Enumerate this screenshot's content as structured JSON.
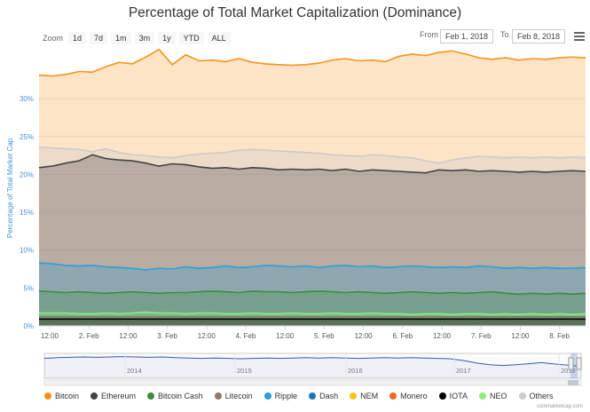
{
  "chart_data": {
    "type": "area",
    "title": "Percentage of Total Market Capitalization (Dominance)",
    "ylabel": "Percentage of Total Market Cap",
    "ylim": [
      0,
      36
    ],
    "yticks": [
      "0%",
      "5%",
      "10%",
      "15%",
      "20%",
      "25%",
      "30%"
    ],
    "xticks": [
      "12:00",
      "2. Feb",
      "12:00",
      "3. Feb",
      "12:00",
      "4. Feb",
      "12:00",
      "5. Feb",
      "12:00",
      "6. Feb",
      "12:00",
      "7. Feb",
      "12:00",
      "8. Feb"
    ],
    "stacked": false,
    "series": [
      {
        "name": "Bitcoin",
        "color": "#f7931a",
        "values": [
          33.1,
          33.0,
          33.2,
          33.6,
          33.5,
          34.2,
          34.8,
          34.6,
          35.5,
          36.5,
          34.5,
          35.8,
          35.0,
          35.1,
          34.9,
          35.3,
          34.8,
          34.6,
          34.5,
          34.4,
          34.5,
          34.7,
          35.1,
          35.3,
          35.0,
          35.1,
          34.9,
          35.6,
          35.9,
          35.7,
          36.1,
          36.3,
          35.9,
          35.4,
          35.2,
          35.4,
          35.1,
          35.3,
          35.2,
          35.4,
          35.5,
          35.4
        ]
      },
      {
        "name": "Others",
        "color": "#cccccc",
        "values": [
          23.6,
          23.5,
          23.4,
          23.3,
          23.0,
          23.4,
          22.9,
          22.6,
          22.5,
          22.3,
          22.2,
          22.5,
          22.7,
          22.8,
          22.9,
          23.2,
          23.3,
          23.2,
          23.1,
          23.0,
          22.9,
          22.8,
          22.6,
          22.5,
          22.4,
          22.6,
          22.5,
          22.3,
          22.2,
          21.8,
          21.5,
          21.9,
          22.2,
          22.4,
          22.3,
          22.2,
          22.3,
          22.2,
          22.3,
          22.2,
          22.3,
          22.2
        ]
      },
      {
        "name": "Ethereum",
        "color": "#434348",
        "values": [
          20.9,
          21.1,
          21.5,
          21.8,
          22.6,
          22.1,
          21.9,
          21.8,
          21.5,
          21.1,
          21.4,
          21.3,
          21.0,
          20.8,
          20.9,
          20.7,
          20.9,
          20.8,
          20.6,
          20.7,
          20.6,
          20.7,
          20.5,
          20.7,
          20.4,
          20.6,
          20.5,
          20.4,
          20.3,
          20.2,
          20.6,
          20.5,
          20.6,
          20.4,
          20.5,
          20.4,
          20.3,
          20.4,
          20.3,
          20.4,
          20.5,
          20.4
        ]
      },
      {
        "name": "Ripple",
        "color": "#2b9fd8",
        "values": [
          8.3,
          8.2,
          8.0,
          7.9,
          8.0,
          7.8,
          7.7,
          7.6,
          7.4,
          7.6,
          7.5,
          7.8,
          7.6,
          7.7,
          7.9,
          7.7,
          7.8,
          8.0,
          7.9,
          7.8,
          7.9,
          7.7,
          7.9,
          8.0,
          7.8,
          7.9,
          7.7,
          7.8,
          7.9,
          7.8,
          7.7,
          7.8,
          7.7,
          7.9,
          7.8,
          7.6,
          7.7,
          7.6,
          7.7,
          7.6,
          7.6,
          7.7
        ]
      },
      {
        "name": "Bitcoin Cash",
        "color": "#3b8e3b",
        "values": [
          4.6,
          4.5,
          4.4,
          4.5,
          4.4,
          4.3,
          4.4,
          4.5,
          4.4,
          4.3,
          4.4,
          4.4,
          4.5,
          4.6,
          4.5,
          4.4,
          4.6,
          4.5,
          4.5,
          4.4,
          4.5,
          4.6,
          4.5,
          4.4,
          4.5,
          4.4,
          4.3,
          4.4,
          4.5,
          4.4,
          4.3,
          4.4,
          4.3,
          4.4,
          4.5,
          4.3,
          4.2,
          4.3,
          4.2,
          4.3,
          4.2,
          4.3
        ]
      },
      {
        "name": "NEO",
        "color": "#90ed7d",
        "values": [
          1.7,
          1.7,
          1.7,
          1.6,
          1.6,
          1.7,
          1.6,
          1.7,
          1.8,
          1.7,
          1.7,
          1.6,
          1.7,
          1.7,
          1.6,
          1.6,
          1.7,
          1.6,
          1.6,
          1.7,
          1.6,
          1.6,
          1.7,
          1.6,
          1.6,
          1.7,
          1.6,
          1.6,
          1.5,
          1.6,
          1.6,
          1.5,
          1.6,
          1.6,
          1.5,
          1.6,
          1.5,
          1.6,
          1.5,
          1.6,
          1.5,
          1.6
        ]
      },
      {
        "name": "Litecoin",
        "color": "#8d7a6e",
        "values": [
          1.2,
          1.2,
          1.2,
          1.2,
          1.2,
          1.2,
          1.2,
          1.2,
          1.2,
          1.2,
          1.2,
          1.2,
          1.2,
          1.2,
          1.2,
          1.2,
          1.2,
          1.2,
          1.2,
          1.2,
          1.2,
          1.2,
          1.2,
          1.2,
          1.2,
          1.2,
          1.2,
          1.2,
          1.2,
          1.2,
          1.2,
          1.2,
          1.2,
          1.2,
          1.2,
          1.2,
          1.2,
          1.2,
          1.2,
          1.2,
          1.2,
          1.2
        ]
      },
      {
        "name": "IOTA",
        "color": "#000000",
        "values": [
          0.9,
          0.9,
          0.9,
          0.9,
          0.9,
          0.9,
          0.9,
          0.9,
          0.9,
          0.9,
          0.9,
          0.9,
          0.9,
          0.9,
          0.9,
          0.9,
          0.9,
          0.9,
          0.9,
          0.9,
          0.9,
          0.9,
          0.9,
          0.9,
          0.9,
          0.9,
          0.9,
          0.9,
          0.9,
          0.9,
          0.9,
          0.9,
          0.9,
          0.9,
          0.9,
          0.9,
          0.9,
          0.9,
          0.9,
          0.9,
          0.9,
          0.9
        ]
      }
    ],
    "navigator": {
      "xticks": [
        "2014",
        "2015",
        "2016",
        "2017",
        "2018"
      ],
      "values": [
        56,
        58,
        59,
        60,
        59,
        60,
        61,
        60,
        59,
        60,
        58,
        57,
        56,
        57,
        56,
        55,
        56,
        57,
        56,
        57,
        58,
        57,
        58,
        57,
        56,
        57,
        58,
        57,
        58,
        57,
        56,
        55,
        50,
        43,
        38,
        36,
        38,
        41,
        44,
        40,
        37,
        33
      ]
    }
  },
  "toolbar": {
    "zoom_label": "Zoom",
    "zoom_buttons": [
      "1d",
      "7d",
      "1m",
      "3m",
      "1y",
      "YTD",
      "ALL"
    ],
    "from_label": "From",
    "from_value": "Feb 1, 2018",
    "to_label": "To",
    "to_value": "Feb 8, 2018"
  },
  "legend": [
    {
      "label": "Bitcoin",
      "color": "#f7931a"
    },
    {
      "label": "Ethereum",
      "color": "#434348"
    },
    {
      "label": "Bitcoin Cash",
      "color": "#3b8e3b"
    },
    {
      "label": "Litecoin",
      "color": "#8d7a6e"
    },
    {
      "label": "Ripple",
      "color": "#2b9fd8"
    },
    {
      "label": "Dash",
      "color": "#1c75bc"
    },
    {
      "label": "NEM",
      "color": "#f9c30f"
    },
    {
      "label": "Monero",
      "color": "#f26822"
    },
    {
      "label": "IOTA",
      "color": "#000000"
    },
    {
      "label": "NEO",
      "color": "#90ed7d"
    },
    {
      "label": "Others",
      "color": "#cccccc"
    }
  ],
  "credit": "coinmarketcap.com"
}
